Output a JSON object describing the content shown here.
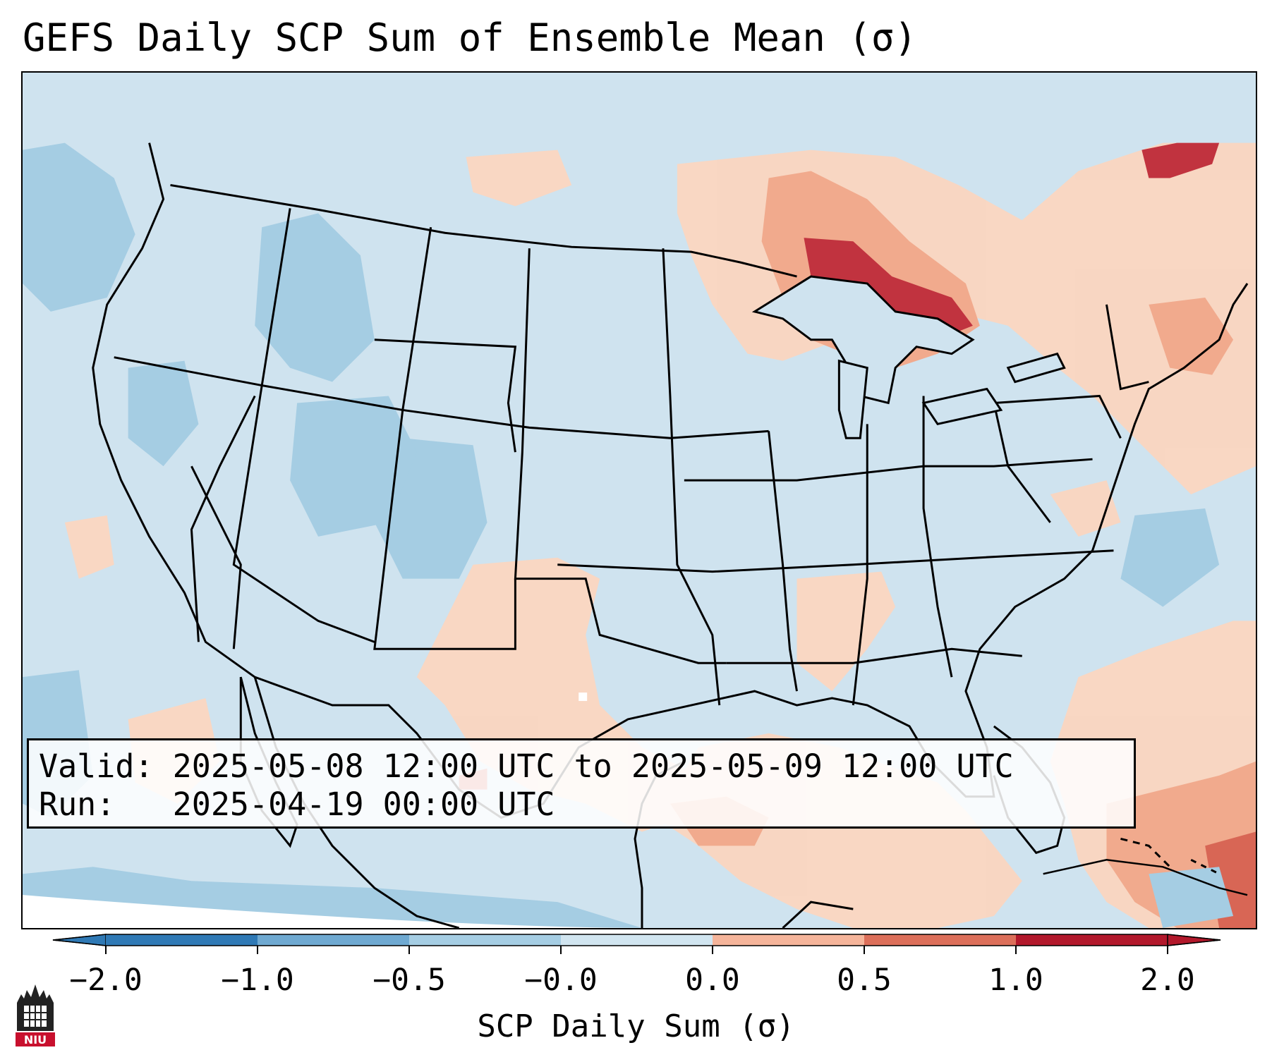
{
  "title": "GEFS Daily SCP Sum of Ensemble Mean (σ)",
  "info": {
    "valid_label": "Valid:",
    "valid_text": "2025-05-08 12:00 UTC to 2025-05-09 12:00 UTC",
    "run_label": "Run:",
    "run_text": "2025-04-19 00:00 UTC"
  },
  "colorbar": {
    "label": "SCP Daily Sum (σ)",
    "ticks": [
      "−2.0",
      "−1.0",
      "−0.5",
      "−0.0",
      "0.0",
      "0.5",
      "1.0",
      "2.0"
    ],
    "colors": [
      "#2f79b5",
      "#6fa9d1",
      "#a5cde3",
      "#d1e5f0",
      "#fbe4d6",
      "#f5b49a",
      "#dc6f5a",
      "#b2182b"
    ]
  },
  "legend_colors": {
    "background": "#cfe3ef",
    "neg_light": "#a5cde3",
    "neg_mid": "#6fa9d1",
    "pos_light": "#fbd6c0",
    "pos_mid": "#f3a788",
    "pos_strong": "#d9604d",
    "pos_max": "#b2182b"
  },
  "logo": {
    "text": "NIU"
  }
}
